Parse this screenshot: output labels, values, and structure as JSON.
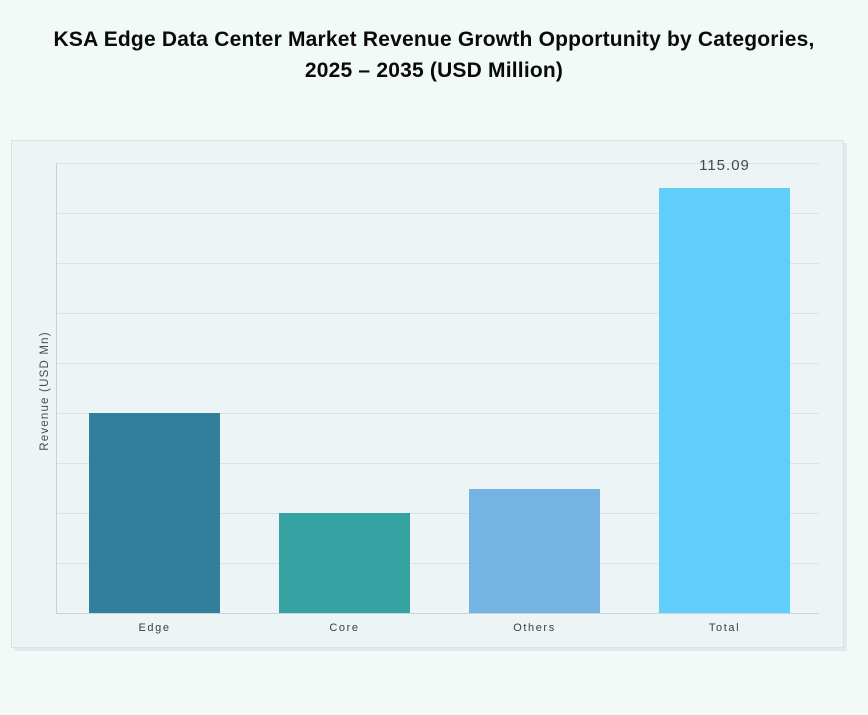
{
  "header": {
    "title_line1": "KSA Edge Data Center Market Revenue Growth Opportunity by Categories,",
    "title_line2": "2025 – 2035 (USD Million)"
  },
  "chart_data": {
    "type": "bar",
    "title": "KSA Edge Data Center Market Revenue Growth Opportunity by Categories, 2025 – 2035 (USD Million)",
    "categories": [
      "Edge",
      "Core",
      "Others",
      "Total"
    ],
    "values": [
      54.2,
      27.1,
      33.6,
      115.09
    ],
    "value_labels": [
      "",
      "",
      "",
      "115.09"
    ],
    "bar_colors": [
      "#327E9D",
      "#35A3A2",
      "#74B3E2",
      "#5FCEFA"
    ],
    "xlabel": "",
    "ylabel": "Revenue (USD Mn)",
    "ylim": [
      0,
      121.9
    ],
    "gridline_count": 10,
    "grid": "horizontal",
    "legend": "none",
    "panel_background": "#EDF4F6",
    "page_background": "#F2FAF8",
    "gridline_color": "#DBE3E6",
    "title_color": "#0a0a0a",
    "label_color": "#3d3d3d"
  }
}
